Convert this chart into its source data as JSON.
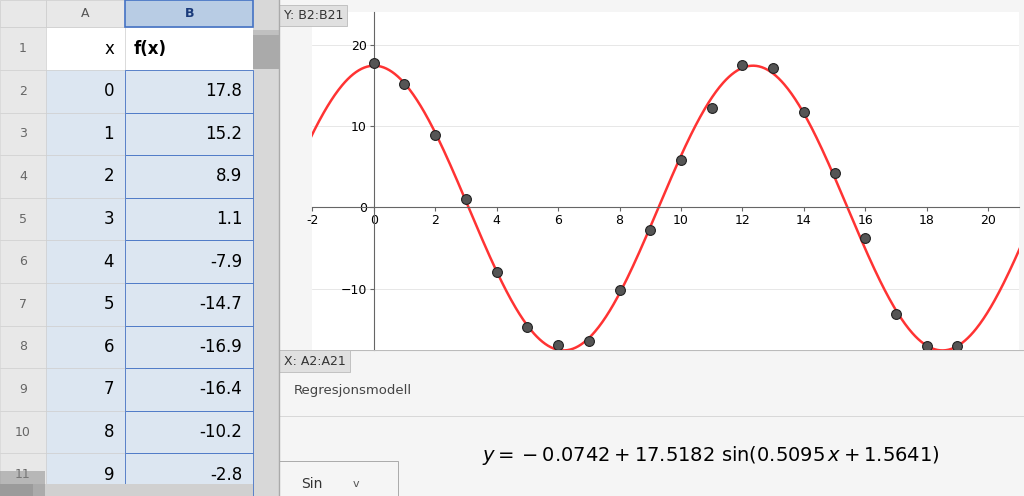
{
  "x_data": [
    0,
    1,
    2,
    3,
    4,
    5,
    6,
    7,
    8,
    9,
    10,
    11,
    12,
    13,
    14,
    15,
    16,
    17,
    18,
    19
  ],
  "y_data": [
    17.8,
    15.2,
    8.9,
    1.1,
    -7.9,
    -14.7,
    -16.9,
    -16.4,
    -10.2,
    -2.8,
    5.9,
    12.2,
    17.5,
    17.2,
    11.8,
    4.3,
    -3.8,
    -13.1,
    -17.0,
    -17.1
  ],
  "a": -0.0742,
  "b": 17.5182,
  "c": 0.5095,
  "d": 1.5641,
  "x_label": "X: A2:A21",
  "y_label": "Y: B2:B21",
  "regression_label": "Regresjonsmodell",
  "sin_label": "Sin",
  "col_a_header": "x",
  "col_b_header": "f(x)",
  "x_axis_min": -2,
  "x_axis_max": 21,
  "y_axis_min": -17.5,
  "y_axis_max": 24,
  "bg_spreadsheet": "#dce6f1",
  "bg_white": "#ffffff",
  "bg_col_header": "#e0e8f4",
  "bg_figure": "#f5f5f5",
  "line_color": "#ff3333",
  "dot_color": "#555555",
  "dot_edge": "#222222",
  "grid_color": "#dddddd",
  "spine_color": "#666666",
  "label_box_bg": "#e0e0e0",
  "label_box_edge": "#bbbbbb",
  "visible_x": [
    0,
    1,
    2,
    3,
    4,
    5,
    6,
    7,
    8,
    9
  ],
  "visible_y": [
    17.8,
    15.2,
    8.9,
    1.1,
    -7.9,
    -14.7,
    -16.9,
    -16.4,
    -10.2,
    -2.8
  ],
  "font_size_table": 12,
  "font_size_axis": 9,
  "font_size_label": 9,
  "font_size_eq": 14,
  "font_size_small": 8
}
